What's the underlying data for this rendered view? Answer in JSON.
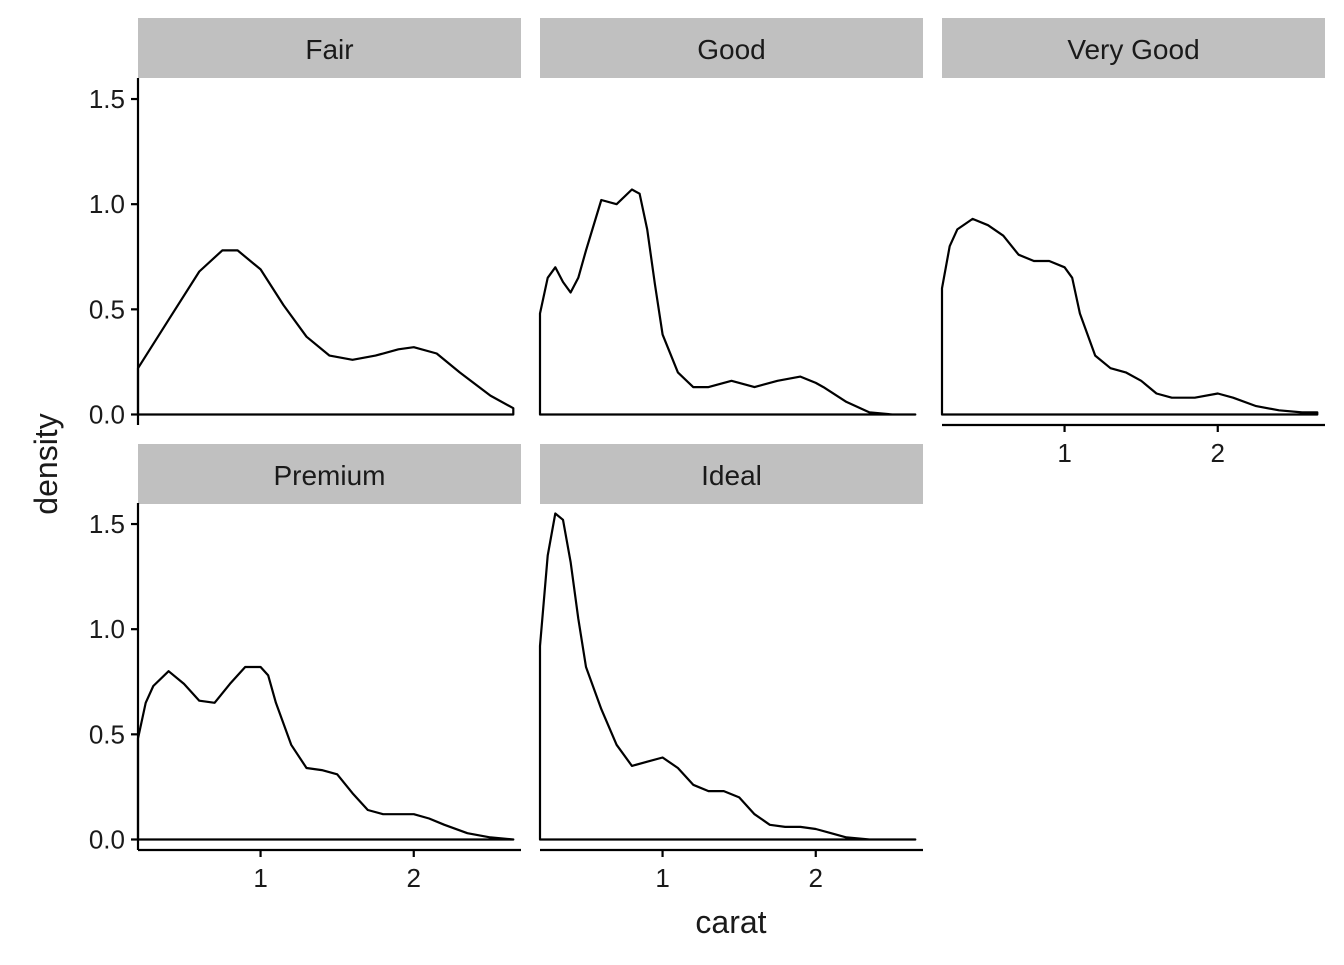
{
  "chart_data": {
    "type": "area",
    "layout": "facet_wrap",
    "xlabel": "carat",
    "ylabel": "density",
    "xlim": [
      0.2,
      2.7
    ],
    "ylim": [
      -0.05,
      1.6
    ],
    "x_ticks": [
      1,
      2
    ],
    "y_ticks": [
      0.0,
      0.5,
      1.0,
      1.5
    ],
    "y_tick_labels": [
      "0.0",
      "0.5",
      "1.0",
      "1.5"
    ],
    "grid": false,
    "colors": {
      "line": "#000000",
      "fill": "#ffffff",
      "strip": "#c0c0c0",
      "axis": "#000000"
    },
    "panels": [
      {
        "label": "Fair",
        "x": [
          0.2,
          0.4,
          0.6,
          0.75,
          0.85,
          1.0,
          1.15,
          1.3,
          1.45,
          1.6,
          1.75,
          1.9,
          2.0,
          2.15,
          2.3,
          2.5,
          2.65
        ],
        "y": [
          0.22,
          0.45,
          0.68,
          0.78,
          0.78,
          0.69,
          0.52,
          0.37,
          0.28,
          0.26,
          0.28,
          0.31,
          0.32,
          0.29,
          0.2,
          0.09,
          0.03
        ]
      },
      {
        "label": "Good",
        "x": [
          0.2,
          0.25,
          0.3,
          0.35,
          0.4,
          0.45,
          0.5,
          0.6,
          0.7,
          0.8,
          0.85,
          0.9,
          0.95,
          1.0,
          1.1,
          1.2,
          1.3,
          1.45,
          1.6,
          1.75,
          1.9,
          2.0,
          2.05,
          2.2,
          2.35,
          2.5,
          2.65
        ],
        "y": [
          0.48,
          0.65,
          0.7,
          0.63,
          0.58,
          0.65,
          0.78,
          1.02,
          1.0,
          1.07,
          1.05,
          0.88,
          0.62,
          0.38,
          0.2,
          0.13,
          0.13,
          0.16,
          0.13,
          0.16,
          0.18,
          0.15,
          0.13,
          0.06,
          0.01,
          0.0,
          0.0
        ]
      },
      {
        "label": "Very Good",
        "x": [
          0.2,
          0.25,
          0.3,
          0.4,
          0.5,
          0.6,
          0.7,
          0.8,
          0.9,
          1.0,
          1.05,
          1.1,
          1.2,
          1.3,
          1.4,
          1.5,
          1.6,
          1.7,
          1.85,
          2.0,
          2.1,
          2.25,
          2.4,
          2.55,
          2.65
        ],
        "y": [
          0.6,
          0.8,
          0.88,
          0.93,
          0.9,
          0.85,
          0.76,
          0.73,
          0.73,
          0.7,
          0.65,
          0.48,
          0.28,
          0.22,
          0.2,
          0.16,
          0.1,
          0.08,
          0.08,
          0.1,
          0.08,
          0.04,
          0.02,
          0.01,
          0.01
        ]
      },
      {
        "label": "Premium",
        "x": [
          0.2,
          0.25,
          0.3,
          0.4,
          0.5,
          0.6,
          0.7,
          0.8,
          0.9,
          1.0,
          1.05,
          1.1,
          1.2,
          1.3,
          1.4,
          1.5,
          1.6,
          1.7,
          1.8,
          1.9,
          2.0,
          2.1,
          2.2,
          2.35,
          2.5,
          2.65
        ],
        "y": [
          0.48,
          0.65,
          0.73,
          0.8,
          0.74,
          0.66,
          0.65,
          0.74,
          0.82,
          0.82,
          0.78,
          0.65,
          0.45,
          0.34,
          0.33,
          0.31,
          0.22,
          0.14,
          0.12,
          0.12,
          0.12,
          0.1,
          0.07,
          0.03,
          0.01,
          0.0
        ]
      },
      {
        "label": "Ideal",
        "x": [
          0.2,
          0.25,
          0.3,
          0.35,
          0.4,
          0.45,
          0.5,
          0.6,
          0.7,
          0.8,
          0.9,
          1.0,
          1.1,
          1.2,
          1.3,
          1.4,
          1.5,
          1.6,
          1.7,
          1.8,
          1.9,
          2.0,
          2.1,
          2.2,
          2.35,
          2.5,
          2.65
        ],
        "y": [
          0.92,
          1.35,
          1.55,
          1.52,
          1.32,
          1.05,
          0.82,
          0.62,
          0.45,
          0.35,
          0.37,
          0.39,
          0.34,
          0.26,
          0.23,
          0.23,
          0.2,
          0.12,
          0.07,
          0.06,
          0.06,
          0.05,
          0.03,
          0.01,
          0.0,
          0.0,
          0.0
        ]
      }
    ]
  }
}
